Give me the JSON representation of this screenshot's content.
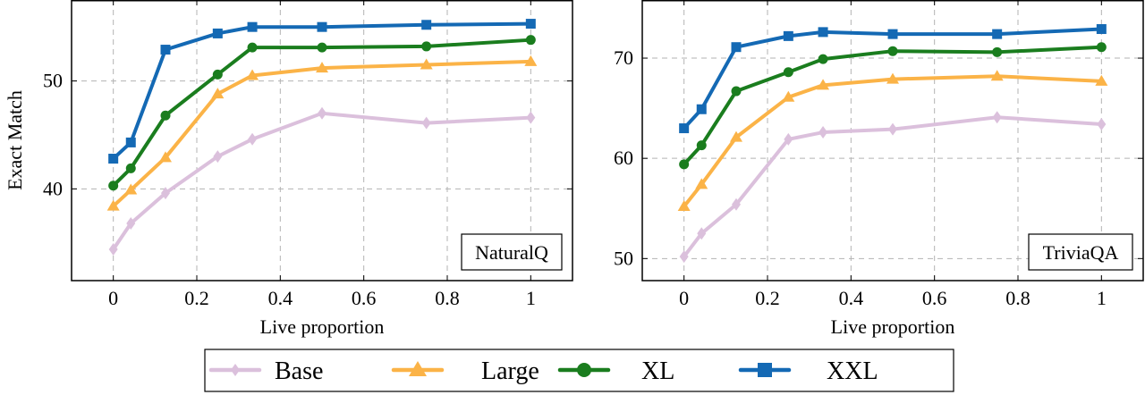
{
  "chart_data": [
    {
      "type": "line",
      "title": "",
      "panel_label": "NaturalQ",
      "xlabel": "Live proportion",
      "ylabel": "Exact Match",
      "xlim": [
        -0.1,
        1.1
      ],
      "ylim": [
        31.5,
        57.5
      ],
      "xticks": [
        0,
        0.2,
        0.4,
        0.6,
        0.8,
        1
      ],
      "xtick_labels": [
        "0",
        "0.2",
        "0.4",
        "0.6",
        "0.8",
        "1"
      ],
      "yticks": [
        40,
        50
      ],
      "ytick_labels": [
        "40",
        "50"
      ],
      "grid": true,
      "x": [
        0,
        0.042,
        0.125,
        0.25,
        0.333,
        0.5,
        0.75,
        1
      ],
      "series": [
        {
          "name": "Base",
          "values": [
            34.4,
            36.8,
            39.6,
            43.0,
            44.6,
            47.0,
            46.1,
            46.6
          ]
        },
        {
          "name": "Large",
          "values": [
            38.4,
            39.9,
            42.9,
            48.8,
            50.5,
            51.2,
            51.5,
            51.8
          ]
        },
        {
          "name": "XL",
          "values": [
            40.3,
            41.9,
            46.8,
            50.6,
            53.1,
            53.1,
            53.2,
            53.8
          ]
        },
        {
          "name": "XXL",
          "values": [
            42.8,
            44.3,
            52.9,
            54.4,
            55.0,
            55.0,
            55.2,
            55.3
          ]
        }
      ]
    },
    {
      "type": "line",
      "title": "",
      "panel_label": "TriviaQA",
      "xlabel": "Live proportion",
      "ylabel": "",
      "xlim": [
        -0.1,
        1.1
      ],
      "ylim": [
        47.8,
        75.8
      ],
      "xticks": [
        0,
        0.2,
        0.4,
        0.6,
        0.8,
        1
      ],
      "xtick_labels": [
        "0",
        "0.2",
        "0.4",
        "0.6",
        "0.8",
        "1"
      ],
      "yticks": [
        50,
        60,
        70
      ],
      "ytick_labels": [
        "50",
        "60",
        "70"
      ],
      "grid": true,
      "x": [
        0,
        0.042,
        0.125,
        0.25,
        0.333,
        0.5,
        0.75,
        1
      ],
      "series": [
        {
          "name": "Base",
          "values": [
            50.2,
            52.5,
            55.4,
            61.9,
            62.6,
            62.9,
            64.1,
            63.4
          ]
        },
        {
          "name": "Large",
          "values": [
            55.2,
            57.4,
            62.1,
            66.1,
            67.3,
            67.9,
            68.2,
            67.7
          ]
        },
        {
          "name": "XL",
          "values": [
            59.4,
            61.3,
            66.7,
            68.6,
            69.9,
            70.7,
            70.6,
            71.1
          ]
        },
        {
          "name": "XXL",
          "values": [
            63.0,
            64.9,
            71.1,
            72.2,
            72.6,
            72.4,
            72.4,
            72.9
          ]
        }
      ]
    }
  ],
  "legend": {
    "placement": "bottom-center",
    "entries": [
      {
        "label": "Base",
        "color": "#dbc0dc",
        "marker": "diamond"
      },
      {
        "label": "Large",
        "color": "#fbb347",
        "marker": "triangle"
      },
      {
        "label": "XL",
        "color": "#1a7d1e",
        "marker": "circle"
      },
      {
        "label": "XXL",
        "color": "#1469b4",
        "marker": "square"
      }
    ]
  },
  "colors": {
    "Base": "#dbc0dc",
    "Large": "#fbb347",
    "XL": "#1a7d1e",
    "XXL": "#1469b4",
    "grid": "#b3b3b3"
  }
}
